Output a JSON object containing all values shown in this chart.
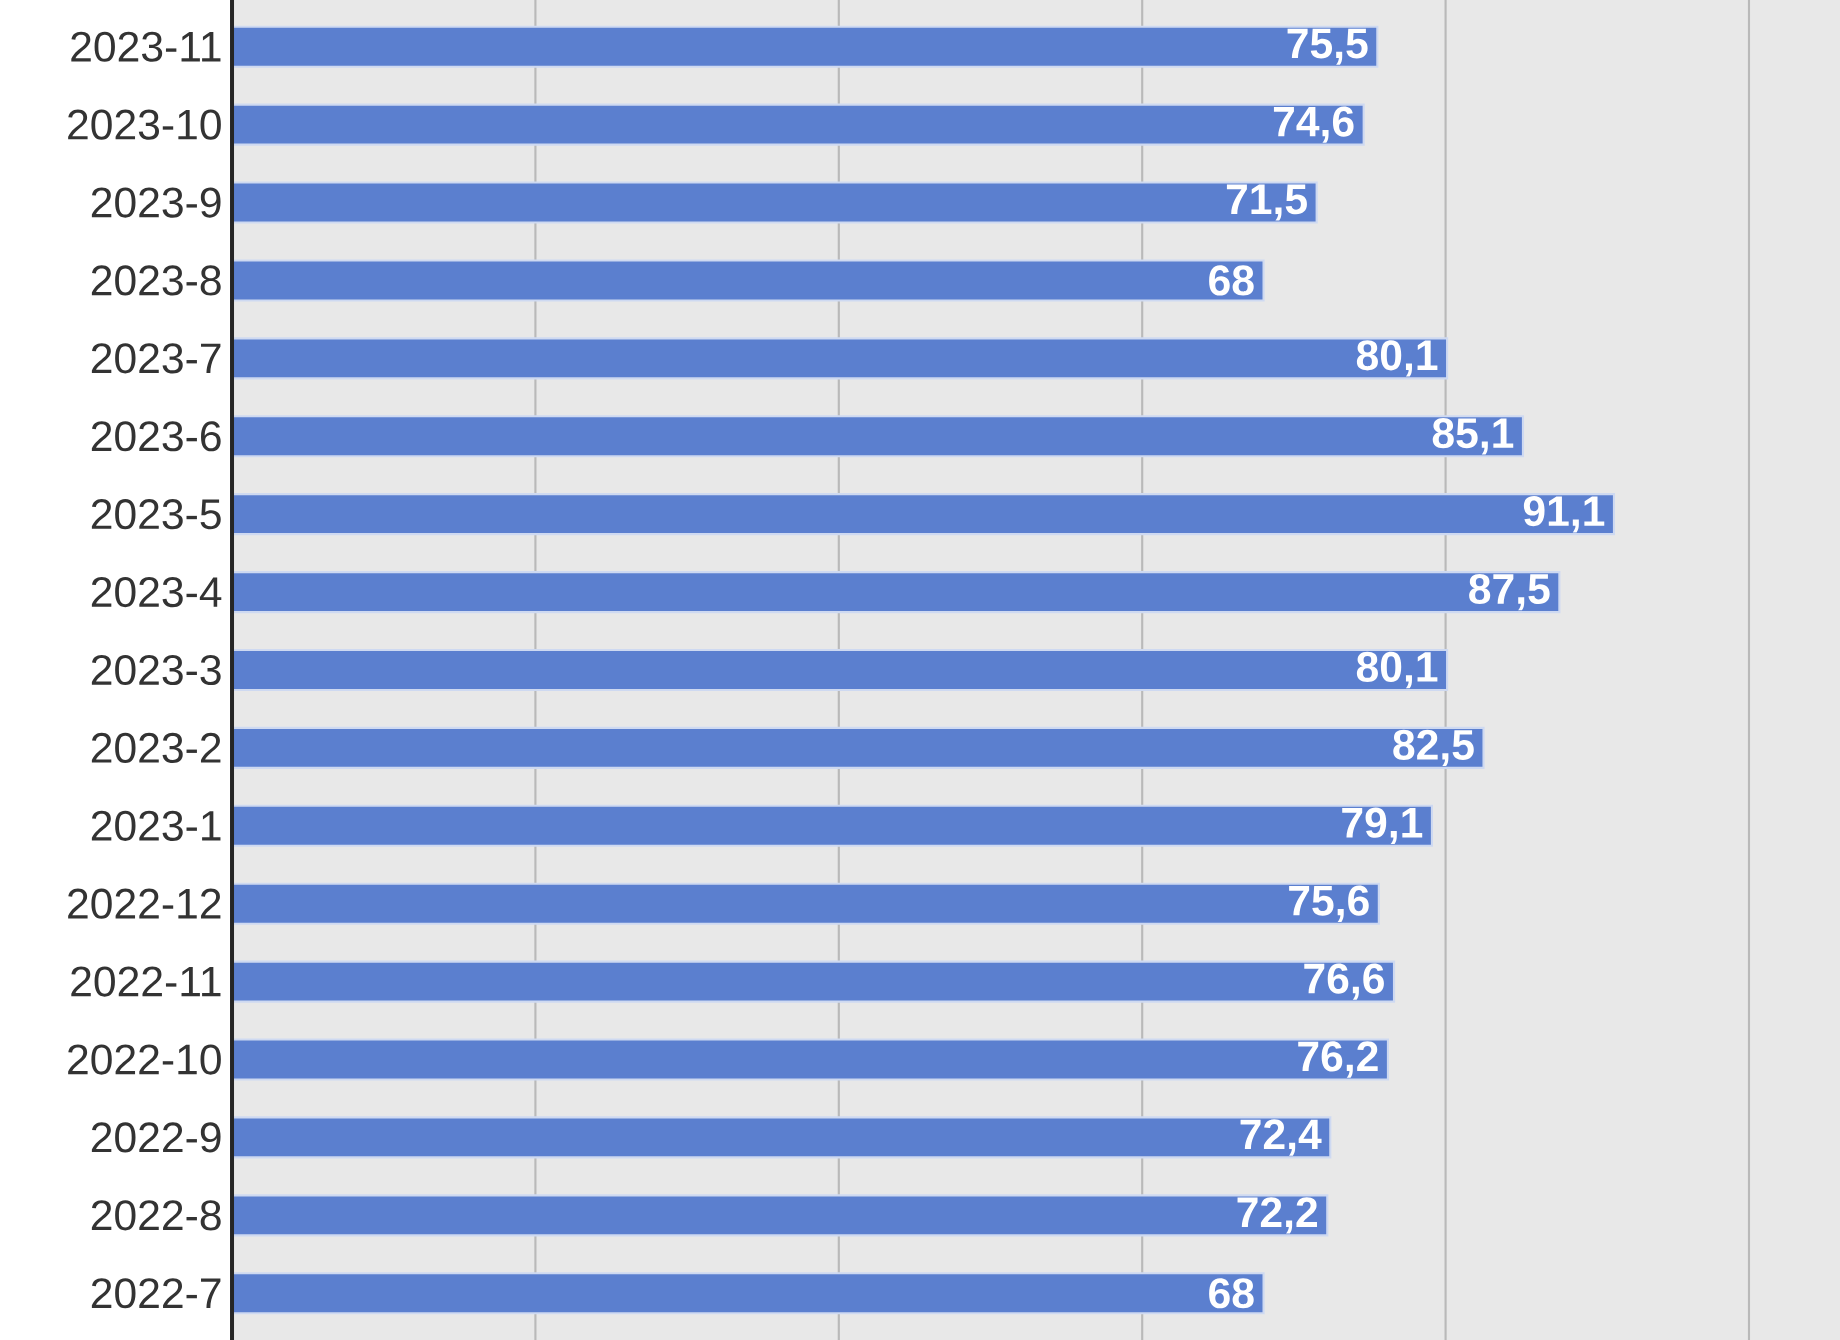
{
  "chart_data": {
    "type": "bar",
    "orientation": "horizontal",
    "categories": [
      "2023-11",
      "2023-10",
      "2023-9",
      "2023-8",
      "2023-7",
      "2023-6",
      "2023-5",
      "2023-4",
      "2023-3",
      "2023-2",
      "2023-1",
      "2022-12",
      "2022-11",
      "2022-10",
      "2022-9",
      "2022-8",
      "2022-7"
    ],
    "values": [
      75.5,
      74.6,
      71.5,
      68,
      80.1,
      85.1,
      91.1,
      87.5,
      80.1,
      82.5,
      79.1,
      75.6,
      76.6,
      76.2,
      72.4,
      72.2,
      68
    ],
    "value_labels": [
      "75,5",
      "74,6",
      "71,5",
      "68",
      "80,1",
      "85,1",
      "91,1",
      "87,5",
      "80,1",
      "82,5",
      "79,1",
      "75,6",
      "76,6",
      "76,2",
      "72,4",
      "72,2",
      "68"
    ],
    "color": "#5b7fcf",
    "xlim": [
      0,
      106
    ],
    "xticks": [
      {
        "value": 0,
        "label": null
      },
      {
        "value": 20,
        "label": null
      },
      {
        "value": 40,
        "label": null
      },
      {
        "value": 60,
        "label": null
      },
      {
        "value": 80,
        "label": null
      },
      {
        "value": 100,
        "label": null
      }
    ],
    "tick_labels": "y",
    "grid": "x"
  }
}
